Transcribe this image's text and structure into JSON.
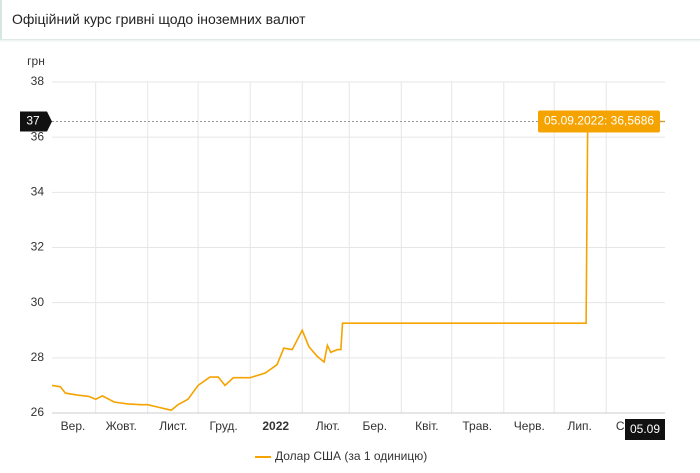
{
  "header": {
    "title": "Офіційний курс гривні щодо іноземних валют"
  },
  "chart_data": {
    "type": "line",
    "ylabel": "грн",
    "x": [
      "2021-09-05",
      "2021-09-10",
      "2021-09-13",
      "2021-09-20",
      "2021-09-27",
      "2021-10-01",
      "2021-10-05",
      "2021-10-12",
      "2021-10-20",
      "2021-10-28",
      "2021-11-01",
      "2021-11-08",
      "2021-11-15",
      "2021-11-19",
      "2021-11-25",
      "2021-12-01",
      "2021-12-08",
      "2021-12-13",
      "2021-12-17",
      "2021-12-22",
      "2022-01-01",
      "2022-01-10",
      "2022-01-17",
      "2022-01-21",
      "2022-01-26",
      "2022-02-01",
      "2022-02-05",
      "2022-02-10",
      "2022-02-14",
      "2022-02-16",
      "2022-02-18",
      "2022-02-22",
      "2022-02-24",
      "2022-02-25",
      "2022-07-20",
      "2022-07-21",
      "2022-09-05"
    ],
    "series": [
      {
        "name": "Долар США (за 1 одиницю)",
        "color": "#f5a300",
        "values": [
          27.0,
          26.95,
          26.72,
          26.65,
          26.6,
          26.5,
          26.62,
          26.4,
          26.33,
          26.3,
          26.3,
          26.2,
          26.1,
          26.3,
          26.5,
          27.0,
          27.3,
          27.3,
          27.0,
          27.28,
          27.28,
          27.45,
          27.75,
          28.35,
          28.3,
          29.0,
          28.4,
          28.05,
          27.85,
          28.45,
          28.2,
          28.3,
          28.3,
          29.2549,
          29.2549,
          36.5686,
          36.5686
        ]
      }
    ],
    "xlim": [
      "2021-09-05",
      "2022-09-05"
    ],
    "xticks": [
      {
        "value": "2021-09-01",
        "label": "Вер."
      },
      {
        "value": "2021-10-01",
        "label": "Жовт."
      },
      {
        "value": "2021-11-01",
        "label": "Лист."
      },
      {
        "value": "2021-12-01",
        "label": "Груд."
      },
      {
        "value": "2022-01-01",
        "label": "2022",
        "bold": true
      },
      {
        "value": "2022-02-01",
        "label": "Лют."
      },
      {
        "value": "2022-03-01",
        "label": "Бер."
      },
      {
        "value": "2022-04-01",
        "label": "Квіт."
      },
      {
        "value": "2022-05-01",
        "label": "Трав."
      },
      {
        "value": "2022-06-01",
        "label": "Черв."
      },
      {
        "value": "2022-07-01",
        "label": "Лип."
      },
      {
        "value": "2022-08-01",
        "label": "Серп."
      }
    ],
    "ylim": [
      26,
      38
    ],
    "yticks": [
      26,
      28,
      30,
      32,
      34,
      36,
      38
    ],
    "grid": true,
    "crosshair": {
      "x": "2022-09-05",
      "value": 36.5686,
      "y_label": "37",
      "x_label": "05.09",
      "tooltip": "05.09.2022: 36,5686"
    }
  }
}
